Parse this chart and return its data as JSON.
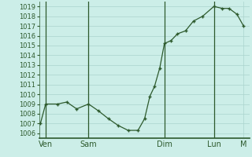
{
  "background_color": "#cceee8",
  "grid_color": "#aad4ce",
  "line_color": "#2d5a2d",
  "marker_color": "#2d5a2d",
  "ylim": [
    1005.5,
    1019.5
  ],
  "yticks": [
    1006,
    1007,
    1008,
    1009,
    1010,
    1011,
    1012,
    1013,
    1014,
    1015,
    1016,
    1017,
    1018,
    1019
  ],
  "x_labels": [
    "Ven",
    "Sam",
    "Dim",
    "Lun",
    "M"
  ],
  "vline_x": [
    10,
    75,
    190,
    265
  ],
  "data_x": [
    2,
    10,
    28,
    42,
    57,
    75,
    90,
    105,
    120,
    135,
    150,
    160,
    168,
    175,
    183,
    190,
    200,
    210,
    222,
    234,
    248,
    265,
    278,
    288,
    300,
    310
  ],
  "data_y": [
    1007.0,
    1009.0,
    1009.0,
    1009.2,
    1008.5,
    1009.0,
    1008.3,
    1007.5,
    1006.8,
    1006.3,
    1006.3,
    1007.5,
    1009.8,
    1010.8,
    1012.7,
    1015.2,
    1015.5,
    1016.2,
    1016.5,
    1017.5,
    1018.0,
    1019.0,
    1018.8,
    1018.8,
    1018.2,
    1017.0
  ],
  "tick_fontsize": 6.0,
  "label_fontsize": 7.0,
  "xlim": [
    0,
    319
  ]
}
